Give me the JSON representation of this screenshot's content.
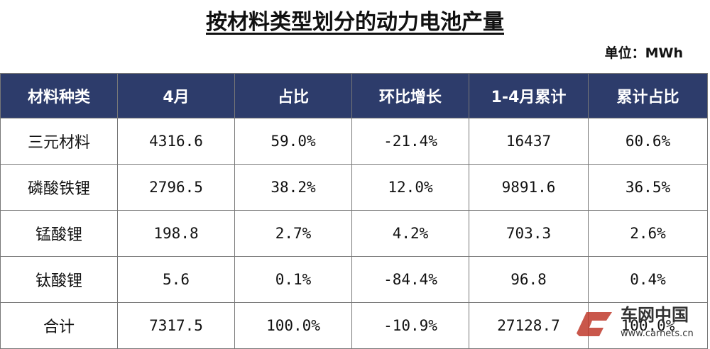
{
  "title": "按材料类型划分的动力电池产量",
  "unit": "单位：MWh",
  "table": {
    "header": [
      "材料种类",
      "4月",
      "占比",
      "环比增长",
      "1-4月累计",
      "累计占比"
    ],
    "rows": [
      [
        "三元材料",
        "4316.6",
        "59.0%",
        "-21.4%",
        "16437",
        "60.6%"
      ],
      [
        "磷酸铁锂",
        "2796.5",
        "38.2%",
        "12.0%",
        "9891.6",
        "36.5%"
      ],
      [
        "锰酸锂",
        "198.8",
        "2.7%",
        "4.2%",
        "703.3",
        "2.6%"
      ],
      [
        "钛酸锂",
        "5.6",
        "0.1%",
        "-84.4%",
        "96.8",
        "0.4%"
      ],
      [
        "合计",
        "7317.5",
        "100.0%",
        "-10.9%",
        "27128.7",
        "100.0%"
      ]
    ]
  },
  "watermark": {
    "name": "车网中国",
    "url": "www.carnets.cn"
  }
}
